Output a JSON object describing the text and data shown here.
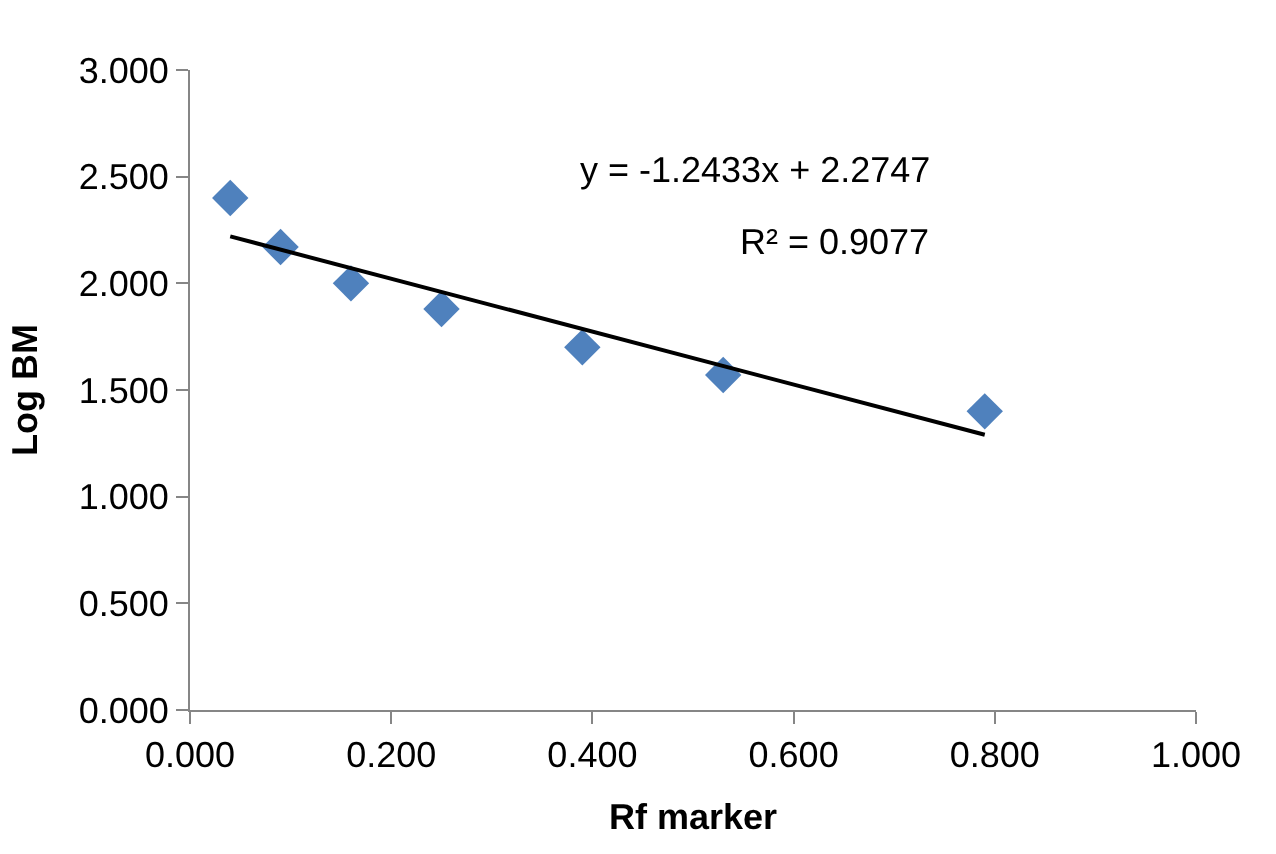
{
  "chart_data": {
    "type": "scatter",
    "xlabel": "Rf marker",
    "ylabel": "Log BM",
    "xlim": [
      0,
      1
    ],
    "xticks": [
      {
        "value": 0,
        "label": "0.000"
      },
      {
        "value": 0.2,
        "label": "0.200"
      },
      {
        "value": 0.4,
        "label": "0.400"
      },
      {
        "value": 0.6,
        "label": "0.600"
      },
      {
        "value": 0.8,
        "label": "0.800"
      },
      {
        "value": 1,
        "label": "1.000"
      }
    ],
    "ylim": [
      0,
      3
    ],
    "yticks": [
      {
        "value": 0,
        "label": "0.000"
      },
      {
        "value": 0.5,
        "label": "0.500"
      },
      {
        "value": 1,
        "label": "1.000"
      },
      {
        "value": 1.5,
        "label": "1.500"
      },
      {
        "value": 2,
        "label": "2.000"
      },
      {
        "value": 2.5,
        "label": "2.500"
      },
      {
        "value": 3,
        "label": "3.000"
      }
    ],
    "series": [
      {
        "color": "#4f81bd",
        "marker": "diamond",
        "x": [
          0.04,
          0.09,
          0.16,
          0.25,
          0.39,
          0.53,
          0.79
        ],
        "values": [
          2.4,
          2.17,
          2.0,
          1.88,
          1.7,
          1.57,
          1.4
        ]
      },
      {
        "type": "line",
        "color": "#000000",
        "line_style": "solid",
        "x": [
          0.04,
          0.79
        ],
        "values": [
          2.22,
          1.29
        ]
      }
    ],
    "annotations": [
      "y = -1.2433x + 2.2747",
      "R² = 0.9077"
    ]
  }
}
